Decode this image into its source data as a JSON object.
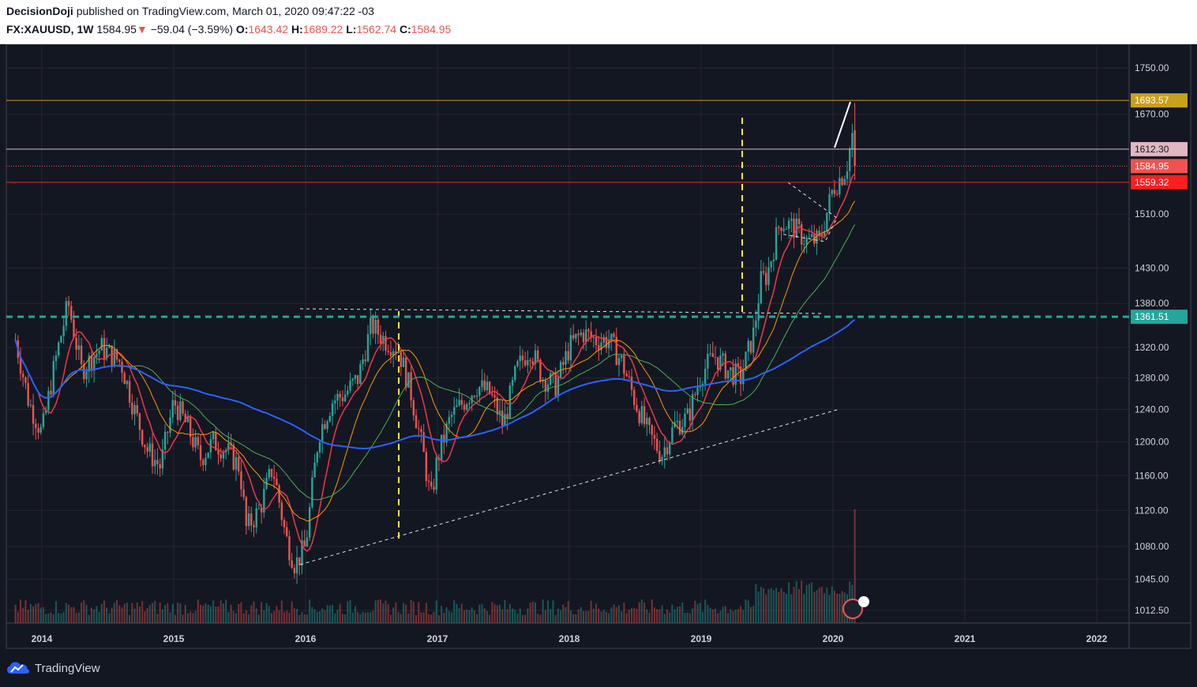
{
  "header": {
    "publisher": "DecisionDoji",
    "published_text": "published on TradingView.com, March 01, 2020 09:47:22 -03",
    "symbol": "FX:XAUUSD, 1W",
    "last": "1584.95",
    "arrow": "▼",
    "change": "−59.04 (−3.59%)",
    "open_label": "O:",
    "open": "1643.42",
    "high_label": "H:",
    "high": "1689.22",
    "low_label": "L:",
    "low": "1562.74",
    "close_label": "C:",
    "close": "1584.95"
  },
  "footer": {
    "brand": "TradingView",
    "logo_icon": "tradingview-cloud-icon"
  },
  "colors": {
    "background": "#131722",
    "up": "#26a69a",
    "down": "#ef5350",
    "ma_red": "#f23645",
    "ma_orange": "#ff9800",
    "ma_green": "#4caf50",
    "ma_blue": "#2962ff",
    "level_gold": "#c8a01e",
    "level_pink": "#e1b7c2",
    "level_red": "#ff1e1e",
    "level_teal": "#26a69a"
  },
  "chart_data": {
    "type": "candlestick",
    "symbol": "XAUUSD",
    "interval": "1W",
    "x_range": [
      "2013-10",
      "2022-06"
    ],
    "y_range": [
      1000,
      1800
    ],
    "y_scale": "log",
    "price_ticks": [
      "1750.00",
      "1670.00",
      "1510.00",
      "1430.00",
      "1380.00",
      "1320.00",
      "1280.00",
      "1240.00",
      "1200.00",
      "1160.00",
      "1120.00",
      "1080.00",
      "1045.00",
      "1012.50"
    ],
    "x_ticks": [
      "2014",
      "2015",
      "2016",
      "2017",
      "2018",
      "2019",
      "2020",
      "2021",
      "2022"
    ],
    "price_labels": [
      {
        "value": "1693.57",
        "color": "#c8a01e",
        "text_color": "#ffffff"
      },
      {
        "value": "1612.30",
        "color": "#e1b7c2",
        "text_color": "#131722"
      },
      {
        "value": "1584.95",
        "color": "#ef5350",
        "text_color": "#ffffff"
      },
      {
        "value": "1559.32",
        "color": "#ff1e1e",
        "text_color": "#ffffff"
      },
      {
        "value": "1361.51",
        "color": "#26a69a",
        "text_color": "#ffffff"
      }
    ],
    "horizontal_levels": [
      1693.57,
      1612.3,
      1584.95,
      1559.32,
      1361.51
    ],
    "price_path": [
      [
        2013.8,
        1330
      ],
      [
        2013.9,
        1250
      ],
      [
        2014.0,
        1210
      ],
      [
        2014.1,
        1300
      ],
      [
        2014.2,
        1380
      ],
      [
        2014.3,
        1290
      ],
      [
        2014.45,
        1320
      ],
      [
        2014.6,
        1300
      ],
      [
        2014.7,
        1240
      ],
      [
        2014.8,
        1190
      ],
      [
        2014.9,
        1170
      ],
      [
        2015.0,
        1250
      ],
      [
        2015.1,
        1220
      ],
      [
        2015.2,
        1180
      ],
      [
        2015.3,
        1200
      ],
      [
        2015.4,
        1190
      ],
      [
        2015.5,
        1170
      ],
      [
        2015.55,
        1100
      ],
      [
        2015.65,
        1120
      ],
      [
        2015.75,
        1170
      ],
      [
        2015.85,
        1090
      ],
      [
        2015.92,
        1060
      ],
      [
        2016.0,
        1080
      ],
      [
        2016.1,
        1210
      ],
      [
        2016.2,
        1250
      ],
      [
        2016.3,
        1260
      ],
      [
        2016.4,
        1280
      ],
      [
        2016.5,
        1350
      ],
      [
        2016.6,
        1330
      ],
      [
        2016.7,
        1320
      ],
      [
        2016.8,
        1260
      ],
      [
        2016.9,
        1180
      ],
      [
        2016.95,
        1130
      ],
      [
        2017.0,
        1180
      ],
      [
        2017.1,
        1230
      ],
      [
        2017.2,
        1250
      ],
      [
        2017.3,
        1270
      ],
      [
        2017.4,
        1260
      ],
      [
        2017.5,
        1220
      ],
      [
        2017.6,
        1290
      ],
      [
        2017.7,
        1320
      ],
      [
        2017.8,
        1280
      ],
      [
        2017.9,
        1270
      ],
      [
        2018.0,
        1320
      ],
      [
        2018.1,
        1340
      ],
      [
        2018.2,
        1330
      ],
      [
        2018.3,
        1330
      ],
      [
        2018.4,
        1300
      ],
      [
        2018.5,
        1250
      ],
      [
        2018.6,
        1210
      ],
      [
        2018.7,
        1185
      ],
      [
        2018.8,
        1220
      ],
      [
        2018.9,
        1230
      ],
      [
        2019.0,
        1285
      ],
      [
        2019.1,
        1310
      ],
      [
        2019.2,
        1290
      ],
      [
        2019.3,
        1280
      ],
      [
        2019.4,
        1340
      ],
      [
        2019.45,
        1410
      ],
      [
        2019.5,
        1420
      ],
      [
        2019.6,
        1500
      ],
      [
        2019.7,
        1490
      ],
      [
        2019.8,
        1470
      ],
      [
        2019.9,
        1470
      ],
      [
        2020.0,
        1550
      ],
      [
        2020.1,
        1580
      ],
      [
        2020.15,
        1640
      ],
      [
        2020.17,
        1585
      ]
    ],
    "volume_scale": [
      0,
      1
    ]
  }
}
